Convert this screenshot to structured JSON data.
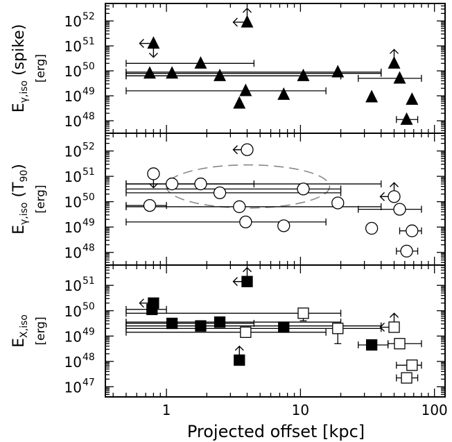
{
  "chart_data": {
    "type": "scatter",
    "x_axis": {
      "label": "Projected offset [kpc]",
      "scale": "log",
      "range": [
        0.35,
        120
      ],
      "tick_labels": [
        "1",
        "10",
        "100"
      ],
      "tick_values": [
        1,
        10,
        100
      ]
    },
    "panels": [
      {
        "id": "spike",
        "ylabel": "E",
        "ylabel_sub": "γ,iso",
        "ylabel_paren": "(spike)",
        "yunit": "[erg]",
        "yscale": "log",
        "ylog_range": [
          47.5,
          52.7
        ],
        "ytick_exponents": [
          "48",
          "49",
          "50",
          "51",
          "52"
        ],
        "marker": "triangle",
        "fill": "#000000",
        "points": [
          {
            "x": 4.0,
            "y": 51.95,
            "arrows": [
              "up",
              "left"
            ]
          },
          {
            "x": 0.8,
            "y": 51.1,
            "arrows": [
              "left",
              "down"
            ]
          },
          {
            "x": 1.8,
            "y": 50.3,
            "xerr": [
              0.5,
              4.5
            ]
          },
          {
            "x": 0.75,
            "y": 49.9
          },
          {
            "x": 1.1,
            "y": 49.9,
            "xerr": [
              0.5,
              40
            ]
          },
          {
            "x": 2.5,
            "y": 49.8,
            "xerr": [
              0.5,
              20
            ]
          },
          {
            "x": 10.5,
            "y": 49.8,
            "xerr": [
              0.5,
              20
            ]
          },
          {
            "x": 19.0,
            "y": 49.95,
            "xerr": [
              0.5,
              40
            ]
          },
          {
            "x": 50.0,
            "y": 50.3,
            "arrows": [
              "up"
            ]
          },
          {
            "x": 55.0,
            "y": 49.7,
            "xerr": [
              27,
              80
            ]
          },
          {
            "x": 3.9,
            "y": 49.2,
            "xerr": [
              0.5,
              15.5
            ]
          },
          {
            "x": 7.5,
            "y": 49.05
          },
          {
            "x": 3.5,
            "y": 48.7
          },
          {
            "x": 34.0,
            "y": 48.95
          },
          {
            "x": 68.0,
            "y": 48.85
          },
          {
            "x": 62.0,
            "y": 48.05,
            "xerr": [
              52,
              75
            ]
          }
        ]
      },
      {
        "id": "t90",
        "ylabel": "E",
        "ylabel_sub": "γ,iso",
        "ylabel_paren": "(T",
        "ylabel_paren_sub": "90",
        "ylabel_paren_end": ")",
        "yunit": "[erg]",
        "yscale": "log",
        "ylog_range": [
          47.5,
          52.7
        ],
        "ytick_exponents": [
          "48",
          "49",
          "50",
          "51",
          "52"
        ],
        "marker": "circle",
        "fill": "#ffffff",
        "ellipse": {
          "cx": 4.0,
          "cy": 50.6,
          "x_from": 1.0,
          "x_to": 16.5,
          "dy": 0.85
        },
        "points": [
          {
            "x": 4.0,
            "y": 52.05,
            "arrows": [
              "left"
            ]
          },
          {
            "x": 0.8,
            "y": 51.1,
            "arrows": [
              "down"
            ]
          },
          {
            "x": 1.1,
            "y": 50.7,
            "xerr": [
              0.5,
              4.5
            ]
          },
          {
            "x": 1.8,
            "y": 50.7,
            "xerr": [
              0.5,
              40
            ]
          },
          {
            "x": 2.5,
            "y": 50.35,
            "xerr": [
              0.5,
              20
            ]
          },
          {
            "x": 10.5,
            "y": 50.5,
            "xerr": [
              0.5,
              20
            ]
          },
          {
            "x": 19.0,
            "y": 49.95
          },
          {
            "x": 0.75,
            "y": 49.85,
            "xerr": [
              0.5,
              1.0
            ]
          },
          {
            "x": 3.5,
            "y": 49.8,
            "xerr": [
              0.5,
              40
            ]
          },
          {
            "x": 50.0,
            "y": 50.2,
            "arrows": [
              "up",
              "left"
            ]
          },
          {
            "x": 55.0,
            "y": 49.7,
            "xerr": [
              27,
              80
            ]
          },
          {
            "x": 3.9,
            "y": 49.2,
            "xerr": [
              0.5,
              15.5
            ]
          },
          {
            "x": 7.5,
            "y": 49.05
          },
          {
            "x": 34.0,
            "y": 48.95
          },
          {
            "x": 68.0,
            "y": 48.85,
            "xerr": [
              55,
              80
            ]
          },
          {
            "x": 62.0,
            "y": 48.05,
            "xerr": [
              52,
              75
            ]
          }
        ]
      },
      {
        "id": "xray",
        "ylabel": "E",
        "ylabel_sub": "X,iso",
        "yunit": "[erg]",
        "yscale": "log",
        "ylog_range": [
          46.6,
          51.8
        ],
        "ytick_exponents": [
          "47",
          "48",
          "49",
          "50",
          "51"
        ],
        "marker": "square",
        "points": [
          {
            "x": 4.0,
            "y": 51.15,
            "fill": "#000000",
            "arrows": [
              "up",
              "left"
            ]
          },
          {
            "x": 0.8,
            "y": 50.3,
            "fill": "#000000",
            "arrows": [
              "left"
            ]
          },
          {
            "x": 0.78,
            "y": 50.05,
            "fill": "#000000",
            "xerr": [
              0.5,
              1.0
            ]
          },
          {
            "x": 10.5,
            "y": 49.9,
            "fill": "#ffffff",
            "xerr": [
              0.5,
              20
            ],
            "yerr": [
              49.6,
              50.0
            ]
          },
          {
            "x": 1.1,
            "y": 49.5,
            "fill": "#000000",
            "xerr": [
              0.5,
              4.5
            ]
          },
          {
            "x": 1.8,
            "y": 49.4,
            "fill": "#000000",
            "xerr": [
              0.5,
              40
            ]
          },
          {
            "x": 2.5,
            "y": 49.55,
            "fill": "#000000",
            "xerr": [
              0.5,
              20
            ]
          },
          {
            "x": 7.5,
            "y": 49.35,
            "fill": "#000000"
          },
          {
            "x": 19.0,
            "y": 49.3,
            "fill": "#ffffff",
            "xerr": [
              0.5,
              40
            ],
            "yerr": [
              48.7,
              49.4
            ]
          },
          {
            "x": 3.9,
            "y": 49.15,
            "fill": "#ffffff",
            "xerr": [
              0.5,
              15.5
            ]
          },
          {
            "x": 50.0,
            "y": 49.35,
            "fill": "#ffffff",
            "arrows": [
              "up",
              "left"
            ]
          },
          {
            "x": 34.0,
            "y": 48.65,
            "fill": "#000000",
            "xerr": [
              27,
              45
            ]
          },
          {
            "x": 55.0,
            "y": 48.7,
            "fill": "#ffffff",
            "xerr": [
              45,
              80
            ]
          },
          {
            "x": 3.5,
            "y": 48.05,
            "fill": "#000000",
            "arrows": [
              "up"
            ]
          },
          {
            "x": 68.0,
            "y": 47.85,
            "fill": "#ffffff",
            "xerr": [
              52,
              80
            ]
          },
          {
            "x": 62.0,
            "y": 47.35,
            "fill": "#ffffff",
            "xerr": [
              52,
              75
            ]
          }
        ]
      }
    ]
  }
}
